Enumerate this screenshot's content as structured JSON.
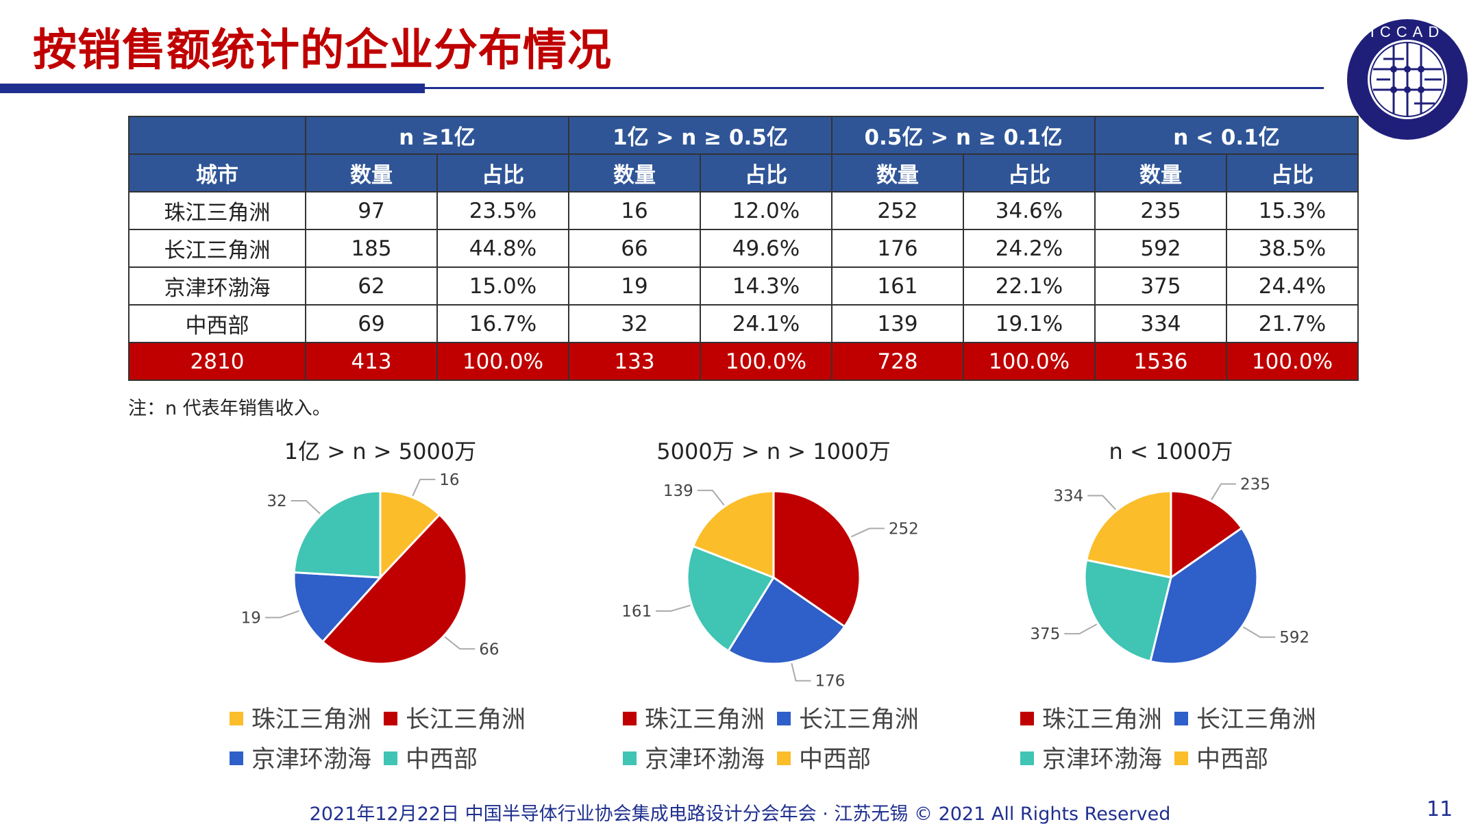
{
  "title": "按销售额统计的企业分布情况",
  "logo": {
    "text": "ICCAD",
    "subtext": "中国半导体行业协会集成电路设计分会"
  },
  "table": {
    "group_headers": [
      "n ≥1亿",
      "1亿 > n ≥ 0.5亿",
      "0.5亿 > n ≥ 0.1亿",
      "n < 0.1亿"
    ],
    "city_header": "城市",
    "sub_headers": [
      "数量",
      "占比"
    ],
    "rows": [
      {
        "city": "珠江三角洲",
        "cells": [
          "97",
          "23.5%",
          "16",
          "12.0%",
          "252",
          "34.6%",
          "235",
          "15.3%"
        ]
      },
      {
        "city": "长江三角洲",
        "cells": [
          "185",
          "44.8%",
          "66",
          "49.6%",
          "176",
          "24.2%",
          "592",
          "38.5%"
        ]
      },
      {
        "city": "京津环渤海",
        "cells": [
          "62",
          "15.0%",
          "19",
          "14.3%",
          "161",
          "22.1%",
          "375",
          "24.4%"
        ]
      },
      {
        "city": "中西部",
        "cells": [
          "69",
          "16.7%",
          "32",
          "24.1%",
          "139",
          "19.1%",
          "334",
          "21.7%"
        ]
      }
    ],
    "total": {
      "city": "2810",
      "cells": [
        "413",
        "100.0%",
        "133",
        "100.0%",
        "728",
        "100.0%",
        "1536",
        "100.0%"
      ]
    }
  },
  "note": "注：n 代表年销售收入。",
  "colors": {
    "header_blue": "#2f5597",
    "total_red": "#c00000",
    "title_red": "#c00000",
    "navy": "#1f2f8f"
  },
  "chart_data": [
    {
      "type": "pie",
      "title": "1亿 > n > 5000万",
      "categories": [
        "珠江三角洲",
        "长江三角洲",
        "京津环渤海",
        "中西部"
      ],
      "values": [
        16,
        66,
        19,
        32
      ],
      "colors": [
        "#fbbd2a",
        "#c00000",
        "#2f5fc8",
        "#40c4b4"
      ],
      "legend": "bottom"
    },
    {
      "type": "pie",
      "title": "5000万 > n > 1000万",
      "categories": [
        "珠江三角洲",
        "长江三角洲",
        "京津环渤海",
        "中西部"
      ],
      "values": [
        252,
        176,
        161,
        139
      ],
      "colors": [
        "#c00000",
        "#2f5fc8",
        "#40c4b4",
        "#fbbd2a"
      ],
      "legend": "bottom"
    },
    {
      "type": "pie",
      "title": "n < 1000万",
      "categories": [
        "珠江三角洲",
        "长江三角洲",
        "京津环渤海",
        "中西部"
      ],
      "values": [
        235,
        592,
        375,
        334
      ],
      "colors": [
        "#c00000",
        "#2f5fc8",
        "#40c4b4",
        "#fbbd2a"
      ],
      "legend": "bottom"
    }
  ],
  "footer": "2021年12月22日 中国半导体行业协会集成电路设计分会年会 · 江苏无锡 © 2021 All Rights Reserved",
  "page_number": "11"
}
